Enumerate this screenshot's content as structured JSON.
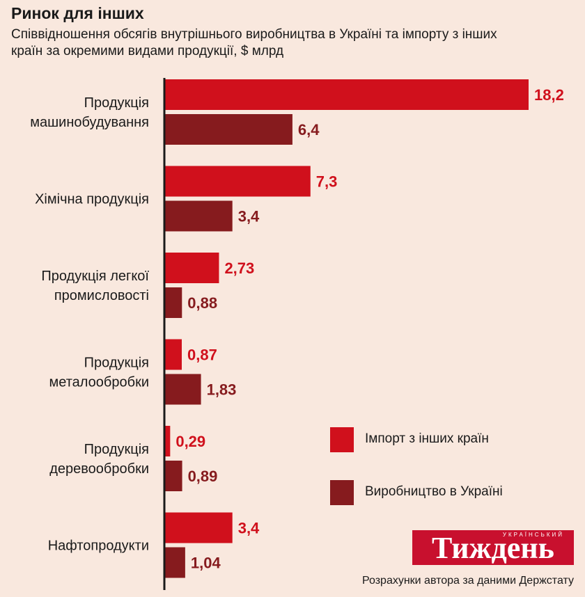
{
  "header": {
    "title": "Ринок для інших",
    "subtitle": "Співвідношення обсягів внутрішнього виробництва в Україні та імпорту з інших країн за окремими видами продукції, $ млрд"
  },
  "colors": {
    "import": "#d0101c",
    "domestic": "#861b1e",
    "background": "#f9e8de"
  },
  "chart_data": {
    "type": "bar",
    "orientation": "horizontal",
    "unit": "$ млрд",
    "categories": [
      [
        "Продукція",
        "машинобудування"
      ],
      [
        "Хімічна продукція"
      ],
      [
        "Продукція легкої",
        "промисловості"
      ],
      [
        "Продукція",
        "металообробки"
      ],
      [
        "Продукція",
        "деревообробки"
      ],
      [
        "Нафтопродукти"
      ]
    ],
    "series": [
      {
        "name": "Імпорт з інших країн",
        "values": [
          18.2,
          7.3,
          2.73,
          0.87,
          0.29,
          3.4
        ],
        "labels": [
          "18,2",
          "7,3",
          "2,73",
          "0,87",
          "0,29",
          "3,4"
        ]
      },
      {
        "name": "Виробництво в Україні",
        "values": [
          6.4,
          3.4,
          0.88,
          1.83,
          0.89,
          1.04
        ],
        "labels": [
          "6,4",
          "3,4",
          "0,88",
          "1,83",
          "0,89",
          "1,04"
        ]
      }
    ],
    "xlim": [
      0,
      18.2
    ],
    "grid": false,
    "legend_position": "bottom-right"
  },
  "legend": {
    "items": [
      {
        "label": "Імпорт з інших країн"
      },
      {
        "label": "Виробництво в Україні"
      }
    ]
  },
  "logo": {
    "small_text": "Український",
    "brand": "Тиждень"
  },
  "footer": {
    "source": "Розрахунки автора за даними Держстату"
  }
}
